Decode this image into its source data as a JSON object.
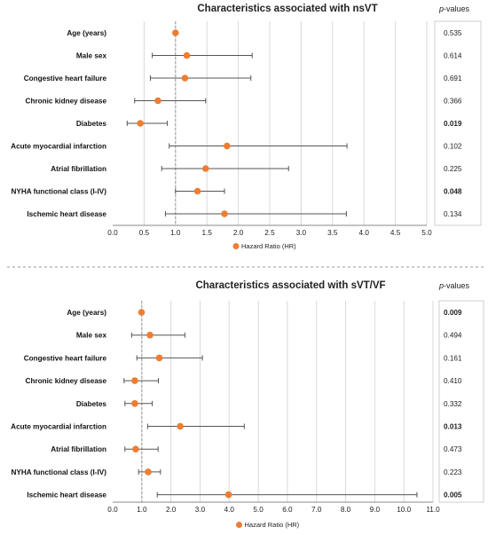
{
  "separator_color": "#999999",
  "chart_data": [
    {
      "type": "forest",
      "title": "Characteristics associated with nsVT",
      "pvalues_header": "p-values",
      "legend": "Hazard Ratio (HR)",
      "marker_color": "#ED7D31",
      "xlim": [
        0,
        5
      ],
      "reference_line": 1,
      "xticks": [
        "0.0",
        "0.5",
        "1.0",
        "1.5",
        "2.0",
        "2.5",
        "3.0",
        "3.5",
        "4.0",
        "4.5",
        "5.0"
      ],
      "rows": [
        {
          "label": "Age (years)",
          "hr": 1.0,
          "lo": 1.0,
          "hi": 1.0,
          "p": "0.535",
          "significant": false
        },
        {
          "label": "Male sex",
          "hr": 1.18,
          "lo": 0.63,
          "hi": 2.22,
          "p": "0.614",
          "significant": false
        },
        {
          "label": "Congestive heart failure",
          "hr": 1.15,
          "lo": 0.6,
          "hi": 2.2,
          "p": "0.691",
          "significant": false
        },
        {
          "label": "Chronic kidney disease",
          "hr": 0.72,
          "lo": 0.35,
          "hi": 1.48,
          "p": "0.366",
          "significant": false
        },
        {
          "label": "Diabetes",
          "hr": 0.44,
          "lo": 0.23,
          "hi": 0.87,
          "p": "0.019",
          "significant": true
        },
        {
          "label": "Acute myocardial infarction",
          "hr": 1.82,
          "lo": 0.9,
          "hi": 3.73,
          "p": "0.102",
          "significant": false
        },
        {
          "label": "Atrial fibrillation",
          "hr": 1.48,
          "lo": 0.78,
          "hi": 2.8,
          "p": "0.225",
          "significant": false
        },
        {
          "label": "NYHA functional class (I-IV)",
          "hr": 1.35,
          "lo": 1.0,
          "hi": 1.78,
          "p": "0.048",
          "significant": true
        },
        {
          "label": "Ischemic heart disease",
          "hr": 1.78,
          "lo": 0.84,
          "hi": 3.72,
          "p": "0.134",
          "significant": false
        }
      ]
    },
    {
      "type": "forest",
      "title": "Characteristics associated with sVT/VF",
      "pvalues_header": "p-values",
      "legend": "Hazard Ratio (HR)",
      "marker_color": "#ED7D31",
      "xlim": [
        0,
        11
      ],
      "reference_line": 1,
      "xticks": [
        "0.0",
        "1.0",
        "2.0",
        "3.0",
        "4.0",
        "5.0",
        "6.0",
        "7.0",
        "8.0",
        "9.0",
        "10.0",
        "11.0"
      ],
      "rows": [
        {
          "label": "Age (years)",
          "hr": 0.99,
          "lo": 0.99,
          "hi": 0.99,
          "p": "0.009",
          "significant": true
        },
        {
          "label": "Male sex",
          "hr": 1.28,
          "lo": 0.65,
          "hi": 2.48,
          "p": "0.494",
          "significant": false
        },
        {
          "label": "Congestive heart failure",
          "hr": 1.6,
          "lo": 0.83,
          "hi": 3.08,
          "p": "0.161",
          "significant": false
        },
        {
          "label": "Chronic kidney disease",
          "hr": 0.76,
          "lo": 0.39,
          "hi": 1.57,
          "p": "0.410",
          "significant": false
        },
        {
          "label": "Diabetes",
          "hr": 0.76,
          "lo": 0.42,
          "hi": 1.36,
          "p": "0.332",
          "significant": false
        },
        {
          "label": "Acute myocardial infarction",
          "hr": 2.32,
          "lo": 1.2,
          "hi": 4.52,
          "p": "0.013",
          "significant": true
        },
        {
          "label": "Atrial fibrillation",
          "hr": 0.79,
          "lo": 0.42,
          "hi": 1.56,
          "p": "0.473",
          "significant": false
        },
        {
          "label": "NYHA functional class (I-IV)",
          "hr": 1.22,
          "lo": 0.89,
          "hi": 1.64,
          "p": "0.223",
          "significant": false
        },
        {
          "label": "Ischemic heart disease",
          "hr": 3.98,
          "lo": 1.53,
          "hi": 10.45,
          "p": "0.005",
          "significant": true
        }
      ]
    }
  ]
}
